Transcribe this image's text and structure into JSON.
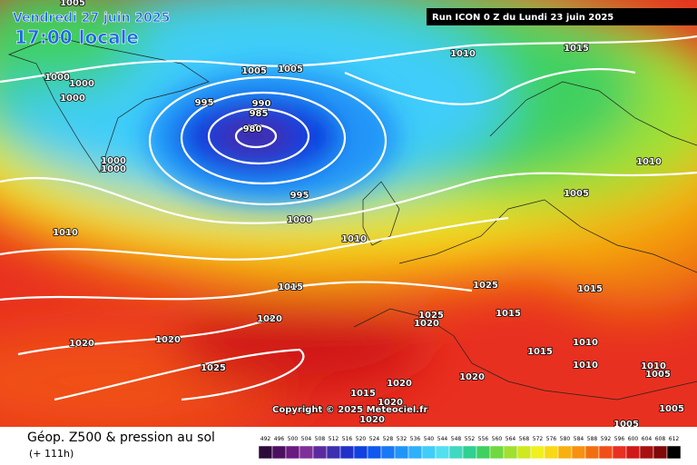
{
  "header": {
    "date": "Vendredi 27 juin 2025",
    "time": "17:00 locale",
    "run": "Run ICON 0 Z du Lundi 23 juin 2025",
    "copyright": "Copyright © 2025 Meteociel.fr"
  },
  "footer": {
    "title": "Géop. Z500 & pression au sol",
    "lead": "(+ 111h)"
  },
  "pressure_labels": [
    "1005",
    "1000",
    "1000",
    "1000",
    "1000",
    "1000",
    "1010",
    "1005",
    "1005",
    "995",
    "990",
    "985",
    "980",
    "995",
    "1000",
    "1010",
    "1015",
    "1010",
    "1005",
    "1010",
    "1015",
    "1020",
    "1020",
    "1020",
    "1025",
    "1025",
    "1025",
    "1020",
    "1015",
    "1015",
    "1015",
    "1010",
    "1010",
    "1010",
    "1005",
    "1020",
    "1020",
    "1015",
    "1020",
    "1020",
    "1005",
    "1005"
  ],
  "colorbar": {
    "values": [
      "492",
      "496",
      "500",
      "504",
      "508",
      "512",
      "516",
      "520",
      "524",
      "528",
      "532",
      "536",
      "540",
      "544",
      "548",
      "552",
      "556",
      "560",
      "564",
      "568",
      "572",
      "576",
      "580",
      "584",
      "588",
      "592",
      "596",
      "600",
      "604",
      "608",
      "612"
    ],
    "colors": [
      "#2d0a3a",
      "#4b1060",
      "#6a1a80",
      "#7d3099",
      "#5c2aa0",
      "#3c2fb0",
      "#2030c8",
      "#1040e0",
      "#0f58f0",
      "#1878f5",
      "#2095f8",
      "#30b0fa",
      "#40cdfa",
      "#50e0f0",
      "#40d8c0",
      "#30d090",
      "#40d060",
      "#70d840",
      "#a0e030",
      "#d0e820",
      "#f0f020",
      "#f8d818",
      "#f8b010",
      "#f89010",
      "#f07010",
      "#f05018",
      "#e83020",
      "#d01818",
      "#a81010",
      "#800808",
      "#000000"
    ]
  }
}
